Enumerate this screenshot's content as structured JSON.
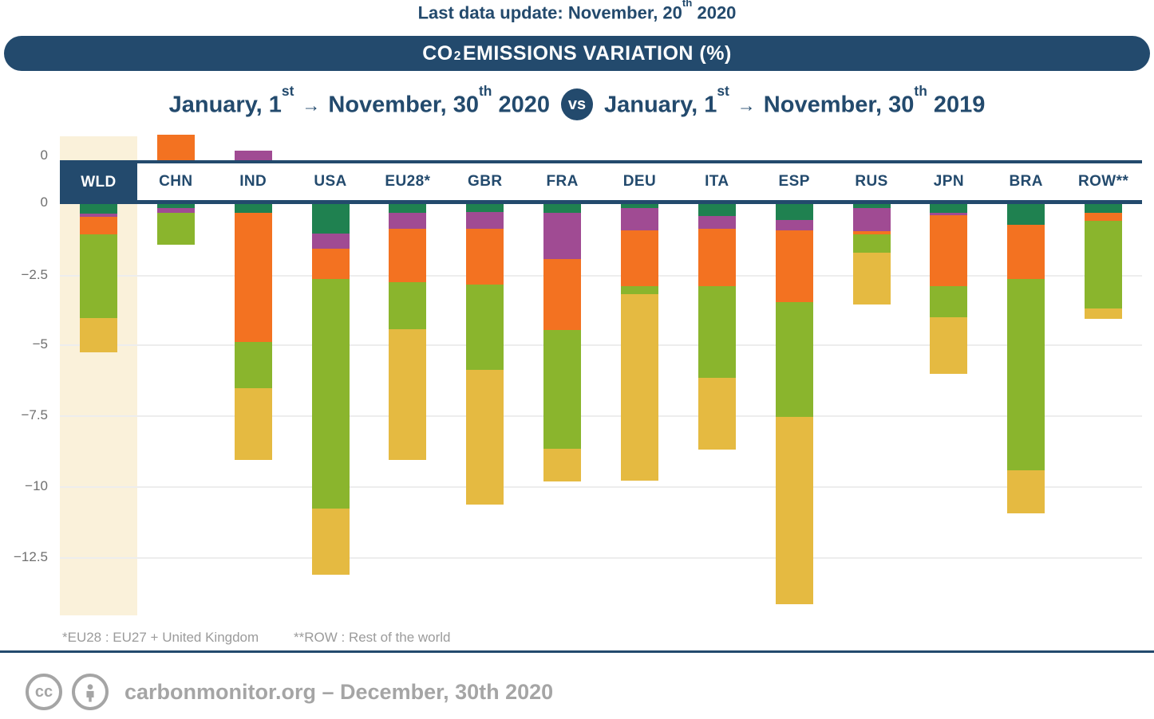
{
  "header": {
    "last_update": {
      "pre": "Last data update: November, 20",
      "sup": "th",
      "post": " 2020"
    },
    "banner": {
      "pre": "CO",
      "sub": "2",
      "post": " EMISSIONS VARIATION (%)"
    }
  },
  "period": {
    "p2020": {
      "a": "January, 1",
      "a_sup": "st",
      "arrow": "→",
      "b": "November, 30",
      "b_sup": "th",
      "year": " 2020"
    },
    "vs": "vs",
    "p2019": {
      "a": "January, 1",
      "a_sup": "st",
      "arrow": "→",
      "b": "November, 30",
      "b_sup": "th",
      "year": " 2019"
    }
  },
  "axis": {
    "ticks": [
      {
        "label": "0"
      },
      {
        "label": "0"
      },
      {
        "label": "−2.5"
      },
      {
        "label": "−5"
      },
      {
        "label": "−7.5"
      },
      {
        "label": "−10"
      },
      {
        "label": "−12.5"
      }
    ]
  },
  "chart_data": {
    "type": "bar",
    "stacked": true,
    "unit": "%",
    "title": "CO2 emissions variation (%), January 1 – November 30 2020 vs January 1 – November 30 2019",
    "categories": [
      "WLD",
      "CHN",
      "IND",
      "USA",
      "EU28*",
      "GBR",
      "FRA",
      "DEU",
      "ITA",
      "ESP",
      "RUS",
      "JPN",
      "BRA",
      "ROW**"
    ],
    "highlighted_category": "WLD",
    "legend_shown": false,
    "grid": true,
    "ylim": [
      -14.6,
      1.2
    ],
    "yticks": [
      0,
      -2.5,
      -5,
      -7.5,
      -10,
      -12.5
    ],
    "series": [
      {
        "name": "dark-green",
        "color": "#1f8150",
        "values": [
          -0.33,
          -0.13,
          -0.31,
          -1.05,
          -0.3,
          -0.27,
          -0.3,
          -0.14,
          -0.41,
          -0.55,
          -0.15,
          -0.3,
          -0.74,
          -0.3
        ]
      },
      {
        "name": "magenta",
        "color": "#a04b93",
        "values": [
          -0.12,
          -0.17,
          0.33,
          -0.51,
          -0.56,
          -0.61,
          -1.63,
          -0.78,
          -0.47,
          -0.39,
          -0.8,
          -0.09,
          0,
          0
        ]
      },
      {
        "name": "orange",
        "color": "#f37221",
        "values": [
          -0.61,
          0.9,
          -4.56,
          -1.08,
          -1.89,
          -1.97,
          -2.51,
          -1.97,
          -2.01,
          -2.51,
          -0.11,
          -2.5,
          -1.89,
          -0.28
        ]
      },
      {
        "name": "light-green",
        "color": "#8ab52d",
        "values": [
          -2.96,
          -1.13,
          -1.61,
          -8.09,
          -1.66,
          -2.98,
          -4.17,
          -0.28,
          -3.22,
          -4.06,
          -0.66,
          -1.11,
          -6.76,
          -3.11
        ]
      },
      {
        "name": "yellow",
        "color": "#e5ba41",
        "values": [
          -1.21,
          0,
          -2.54,
          -2.34,
          -4.62,
          -4.75,
          -1.17,
          -6.59,
          -2.55,
          -6.58,
          -1.83,
          -1.99,
          -1.52,
          -0.35
        ]
      }
    ],
    "net_totals_estimated": [
      -5.2,
      -0.5,
      -8.7,
      -13.1,
      -9.0,
      -10.6,
      -9.8,
      -9.8,
      -8.7,
      -14.1,
      -3.6,
      -6.0,
      -10.9,
      -4.0
    ],
    "colors": {
      "navy": "#234a6d",
      "highlight_column": "#faf1da",
      "gridline": "#ededed"
    }
  },
  "footnotes": {
    "eu28": "*EU28 : EU27 + United Kingdom",
    "row": "**ROW : Rest of the world"
  },
  "footer": {
    "cc_label": "cc",
    "text": "carbonmonitor.org – December, 30th 2020"
  }
}
